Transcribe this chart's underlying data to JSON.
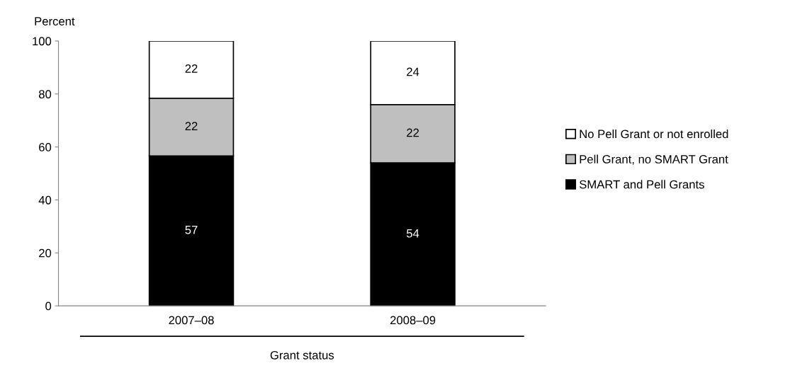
{
  "chart_data": {
    "type": "bar",
    "stacked": true,
    "ylabel": "Percent",
    "xlabel": "Grant status",
    "categories": [
      "2007–08",
      "2008–09"
    ],
    "series": [
      {
        "name": "SMART and Pell Grants",
        "color": "#000000",
        "values": [
          56.6,
          54
        ],
        "value_labels": [
          "57",
          "54"
        ]
      },
      {
        "name": "Pell Grant, no SMART Grant",
        "color": "#bfbfbf",
        "values": [
          21.8,
          22
        ],
        "value_labels": [
          "22",
          "22"
        ]
      },
      {
        "name": "No Pell Grant or not enrolled",
        "color": "#ffffff",
        "values": [
          21.6,
          24
        ],
        "value_labels": [
          "22",
          "24"
        ]
      }
    ],
    "ylim": [
      0,
      100
    ],
    "yticks": [
      0,
      20,
      40,
      60,
      80,
      100
    ],
    "grid": false,
    "legend": "right"
  }
}
